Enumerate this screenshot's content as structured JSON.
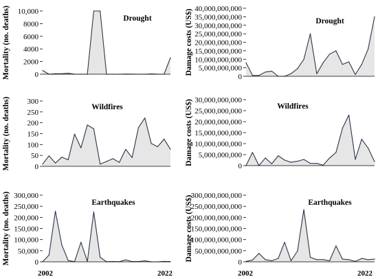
{
  "years": {
    "start": "2002",
    "end": "2022"
  },
  "chart_data": [
    {
      "type": "area",
      "title": "Drought",
      "ylabel": "Mortality (no. deaths)",
      "ylim": [
        0,
        10000
      ],
      "yticks": [
        0,
        2000,
        4000,
        6000,
        8000,
        10000
      ],
      "ytick_labels": [
        "0",
        "2000",
        "4000",
        "6000",
        "8000",
        "10,000"
      ],
      "x": [
        2002,
        2003,
        2004,
        2005,
        2006,
        2007,
        2008,
        2009,
        2010,
        2011,
        2012,
        2013,
        2014,
        2015,
        2016,
        2017,
        2018,
        2019,
        2020,
        2021,
        2022
      ],
      "values": [
        600,
        0,
        80,
        80,
        150,
        0,
        0,
        0,
        10000,
        10000,
        0,
        0,
        0,
        20,
        10,
        0,
        0,
        50,
        10,
        0,
        2600
      ]
    },
    {
      "type": "area",
      "title": "Drought",
      "ylabel": "Damage costs (US$)",
      "ylim": [
        0,
        40000000000
      ],
      "yticks": [
        0,
        5000000000,
        10000000000,
        15000000000,
        20000000000,
        25000000000,
        30000000000,
        35000000000,
        40000000000
      ],
      "ytick_labels": [
        "0",
        "5,000,000,000",
        "10,000,000,000",
        "15,000,000,000",
        "20,000,000,000",
        "25,000,000,000",
        "30,000,000,000",
        "35,000,000,000",
        "40,000,000,000"
      ],
      "x": [
        2002,
        2003,
        2004,
        2005,
        2006,
        2007,
        2008,
        2009,
        2010,
        2011,
        2012,
        2013,
        2014,
        2015,
        2016,
        2017,
        2018,
        2019,
        2020,
        2021,
        2022
      ],
      "values": [
        8000000000,
        500000000,
        500000000,
        2500000000,
        3000000000,
        0,
        0,
        1500000000,
        4500000000,
        10000000000,
        25000000000,
        1500000000,
        8000000000,
        13000000000,
        15000000000,
        7000000000,
        8500000000,
        1000000000,
        7000000000,
        16000000000,
        35000000000
      ]
    },
    {
      "type": "area",
      "title": "Wildfires",
      "ylabel": "Mortality (no. deaths)",
      "ylim": [
        0,
        300
      ],
      "yticks": [
        0,
        50,
        100,
        150,
        200,
        250,
        300
      ],
      "ytick_labels": [
        "0",
        "50",
        "100",
        "150",
        "200",
        "250",
        "300"
      ],
      "x": [
        2002,
        2003,
        2004,
        2005,
        2006,
        2007,
        2008,
        2009,
        2010,
        2011,
        2012,
        2013,
        2014,
        2015,
        2016,
        2017,
        2018,
        2019,
        2020,
        2021,
        2022
      ],
      "values": [
        10,
        48,
        15,
        42,
        30,
        148,
        85,
        190,
        172,
        10,
        22,
        35,
        18,
        78,
        40,
        178,
        222,
        105,
        90,
        125,
        78
      ]
    },
    {
      "type": "area",
      "title": "Wildfires",
      "ylabel": "Damage costs (US$)",
      "ylim": [
        0,
        30000000000
      ],
      "yticks": [
        0,
        5000000000,
        10000000000,
        15000000000,
        20000000000,
        25000000000,
        30000000000
      ],
      "ytick_labels": [
        "0",
        "5,000,000,000",
        "10,000,000,000",
        "15,000,000,000",
        "20,000,000,000",
        "25,000,000,000",
        "30,000,000,000"
      ],
      "x": [
        2002,
        2003,
        2004,
        2005,
        2006,
        2007,
        2008,
        2009,
        2010,
        2011,
        2012,
        2013,
        2014,
        2015,
        2016,
        2017,
        2018,
        2019,
        2020,
        2021,
        2022
      ],
      "values": [
        0,
        6000000000,
        0,
        3500000000,
        800000000,
        4500000000,
        2500000000,
        1500000000,
        2000000000,
        2800000000,
        1000000000,
        1000000000,
        200000000,
        3500000000,
        6000000000,
        17000000000,
        23000000000,
        2800000000,
        12000000000,
        8000000000,
        1800000000
      ]
    },
    {
      "type": "area",
      "title": "Earthquakes",
      "ylabel": "Mortality (no. deaths)",
      "ylim": [
        0,
        300000
      ],
      "yticks": [
        0,
        50000,
        100000,
        150000,
        200000,
        250000,
        300000
      ],
      "ytick_labels": [
        "0",
        "50,000",
        "100,000",
        "150,000",
        "200,000",
        "250,000",
        "300,000"
      ],
      "x": [
        2002,
        2003,
        2004,
        2005,
        2006,
        2007,
        2008,
        2009,
        2010,
        2011,
        2012,
        2013,
        2014,
        2015,
        2016,
        2017,
        2018,
        2019,
        2020,
        2021,
        2022
      ],
      "values": [
        1000,
        30000,
        228000,
        76000,
        6000,
        700,
        88000,
        1800,
        225000,
        20000,
        700,
        1500,
        700,
        9000,
        1300,
        1100,
        4500,
        300,
        100,
        2000,
        1000
      ]
    },
    {
      "type": "area",
      "title": "Earthquakes",
      "ylabel": "Damage costs (US$)",
      "ylim": [
        0,
        300000000000
      ],
      "yticks": [
        0,
        50000000000,
        100000000000,
        150000000000,
        200000000000,
        250000000000,
        300000000000
      ],
      "ytick_labels": [
        "0",
        "50,000,000,000",
        "100,000,000,000",
        "150,000,000,000",
        "200,000,000,000",
        "250,000,000,000",
        "300,000,000,000"
      ],
      "x": [
        2002,
        2003,
        2004,
        2005,
        2006,
        2007,
        2008,
        2009,
        2010,
        2011,
        2012,
        2013,
        2014,
        2015,
        2016,
        2017,
        2018,
        2019,
        2020,
        2021,
        2022
      ],
      "values": [
        2000000000,
        8000000000,
        38000000000,
        10000000000,
        5000000000,
        15000000000,
        88000000000,
        5000000000,
        48000000000,
        235000000000,
        20000000000,
        10000000000,
        10000000000,
        5000000000,
        72000000000,
        12000000000,
        10000000000,
        2000000000,
        15000000000,
        10000000000,
        12000000000
      ]
    }
  ]
}
